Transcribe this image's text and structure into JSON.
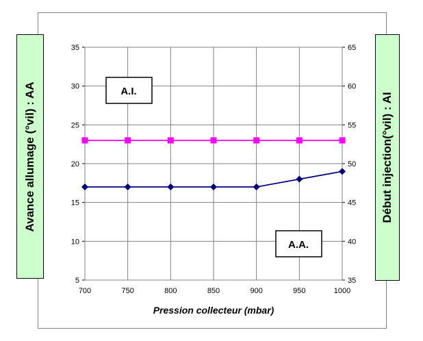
{
  "chart_data": {
    "type": "line",
    "xlabel": "Pression collecteur (mbar)",
    "ylabel_left": "Avance allumage (°vil) : AA",
    "ylabel_right": "Début injection(°vil) : AI",
    "x": [
      700,
      750,
      800,
      850,
      900,
      950,
      1000
    ],
    "xlim": [
      700,
      1000
    ],
    "ylim_left": [
      5,
      35
    ],
    "ylim_right": [
      35,
      65
    ],
    "x_ticks": [
      "700",
      "750",
      "800",
      "850",
      "900",
      "950",
      "1000"
    ],
    "y_left_ticks": [
      "5",
      "10",
      "15",
      "20",
      "25",
      "30",
      "35"
    ],
    "y_right_ticks": [
      "35",
      "40",
      "45",
      "50",
      "55",
      "60",
      "65"
    ],
    "grid": true,
    "series": [
      {
        "name": "A.A.",
        "axis": "left",
        "color": "#000080",
        "marker": "diamond",
        "values": [
          17,
          17,
          17,
          17,
          17,
          18,
          19
        ]
      },
      {
        "name": "A.I.",
        "axis": "right",
        "color": "#ff00ff",
        "marker": "square",
        "values": [
          53,
          53,
          53,
          53,
          53,
          53,
          53
        ]
      }
    ],
    "annotations": [
      "A.I.",
      "A.A."
    ]
  }
}
